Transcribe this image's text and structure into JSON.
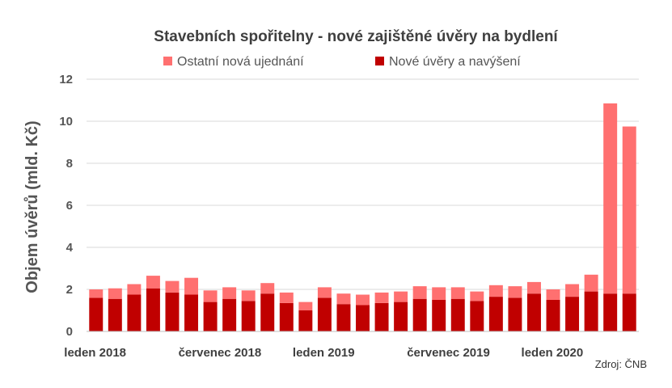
{
  "chart_data": {
    "type": "bar",
    "stacked": true,
    "title": "Stavebních spořitelny - nové zajištěné úvěry na bydlení",
    "ylabel": "Objem úvěrů (mld. Kč)",
    "xlabel": "",
    "ylim": [
      0,
      12
    ],
    "yticks": [
      "0",
      "2",
      "4",
      "6",
      "8",
      "10",
      "12"
    ],
    "grid": true,
    "legend_position": "top",
    "x_tick_labels": [
      {
        "label": "leden 2018",
        "index": 0
      },
      {
        "label": "červenec 2018",
        "index": 6
      },
      {
        "label": "leden 2019",
        "index": 12
      },
      {
        "label": "červenec 2019",
        "index": 18
      },
      {
        "label": "leden 2020",
        "index": 24
      }
    ],
    "categories": [
      "2018-01",
      "2018-02",
      "2018-03",
      "2018-04",
      "2018-05",
      "2018-06",
      "2018-07",
      "2018-08",
      "2018-09",
      "2018-10",
      "2018-11",
      "2018-12",
      "2019-01",
      "2019-02",
      "2019-03",
      "2019-04",
      "2019-05",
      "2019-06",
      "2019-07",
      "2019-08",
      "2019-09",
      "2019-10",
      "2019-11",
      "2019-12",
      "2020-01",
      "2020-02",
      "2020-03",
      "2020-04",
      "2020-05"
    ],
    "series": [
      {
        "name": "Nové úvěry a navýšení",
        "color": "#c00000",
        "values": [
          1.6,
          1.55,
          1.75,
          2.05,
          1.85,
          1.75,
          1.4,
          1.55,
          1.45,
          1.8,
          1.35,
          1.0,
          1.6,
          1.3,
          1.25,
          1.35,
          1.4,
          1.55,
          1.5,
          1.55,
          1.45,
          1.65,
          1.6,
          1.8,
          1.5,
          1.65,
          1.9,
          1.8,
          1.8
        ]
      },
      {
        "name": "Ostatní nová ujednání",
        "color": "#ff7070",
        "values": [
          0.4,
          0.5,
          0.5,
          0.6,
          0.55,
          0.8,
          0.55,
          0.55,
          0.5,
          0.5,
          0.5,
          0.4,
          0.5,
          0.5,
          0.5,
          0.5,
          0.5,
          0.6,
          0.6,
          0.55,
          0.45,
          0.55,
          0.55,
          0.55,
          0.5,
          0.6,
          0.8,
          9.05,
          7.95
        ]
      }
    ],
    "legend_order": [
      "Ostatní nová ujednání",
      "Nové úvěry a navýšení"
    ],
    "source": "Zdroj: ČNB"
  }
}
